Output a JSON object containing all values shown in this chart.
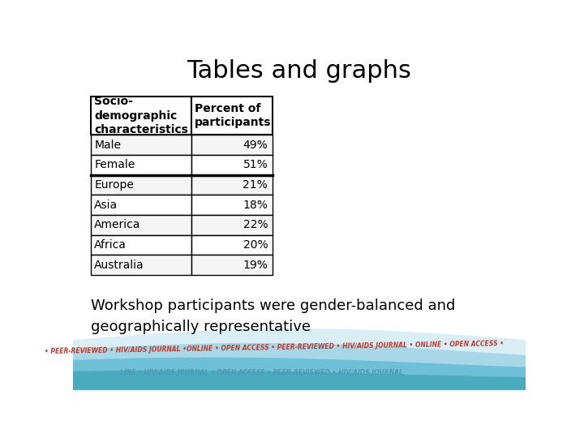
{
  "title": "Tables and graphs",
  "title_fontsize": 22,
  "title_color": "#000000",
  "background_color": "#ffffff",
  "table_headers": [
    "Socio-\ndemographic\ncharacteristics",
    "Percent of\nparticipants"
  ],
  "table_rows": [
    [
      "Male",
      "49%"
    ],
    [
      "Female",
      "51%"
    ],
    [
      "Europe",
      "21%"
    ],
    [
      "Asia",
      "18%"
    ],
    [
      "America",
      "22%"
    ],
    [
      "Africa",
      "20%"
    ],
    [
      "Australia",
      "19%"
    ]
  ],
  "footer_text": "Workshop participants were gender-balanced and\ngeographically representative",
  "footer_fontsize": 13,
  "border_color": "#000000",
  "table_font_size": 10,
  "bottom_text": "• PEER-REVIEWED • HIV/AIDS JOURNAL •ONLINE • OPEN ACCESS • PEER-REVIEWED • HIV/AIDS JOURNAL • ONLINE • OPEN ACCESS •",
  "bottom_text2": "LINE • HIV/AIDS JOURNAL • OPEN ACCESS • PEER-REVIEWED • HIV/AIDS JOURNAL",
  "bottom_text_color": "#c0392b",
  "wave_color1": "#c8e8f0",
  "wave_color2": "#90cedd",
  "wave_color3": "#5ab8d4"
}
